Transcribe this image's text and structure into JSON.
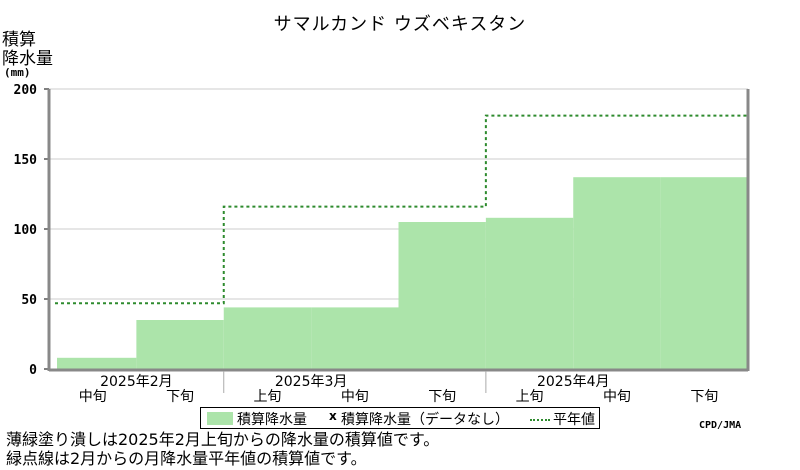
{
  "title": "サマルカンド ウズベキスタン",
  "ylabel": [
    "積算",
    "降水量"
  ],
  "yunit": "(mm)",
  "credit": "CPD/JMA",
  "legend": {
    "bar": "積算降水量",
    "missing_marker": "x",
    "missing": "積算降水量（データなし）",
    "normal": "平年値"
  },
  "notes": [
    "薄緑塗り潰しは2025年2月上旬からの降水量の積算値です。",
    "緑点線は2月からの月降水量平年値の積算値です。"
  ],
  "colors": {
    "bar": "#ace4aa",
    "normal_line": "#2e8b2e",
    "grid": "#cccccc"
  },
  "chart_data": {
    "type": "bar",
    "categories": [
      "中旬",
      "下旬",
      "上旬",
      "中旬",
      "下旬",
      "上旬",
      "中旬",
      "下旬"
    ],
    "months": [
      {
        "label": "2025年2月",
        "first": 0,
        "count": 2
      },
      {
        "label": "2025年3月",
        "first": 2,
        "count": 3
      },
      {
        "label": "2025年4月",
        "first": 5,
        "count": 3
      }
    ],
    "series": [
      {
        "name": "積算降水量",
        "type": "bar",
        "values": [
          8,
          35,
          44,
          44,
          105,
          108,
          137,
          137
        ]
      },
      {
        "name": "平年値",
        "type": "step",
        "values": [
          47,
          47,
          116,
          116,
          116,
          181,
          181,
          181
        ]
      }
    ],
    "yticks": [
      0,
      50,
      100,
      150,
      200
    ],
    "ylim": [
      0,
      200
    ],
    "grid": true,
    "legend_position": "bottom"
  }
}
